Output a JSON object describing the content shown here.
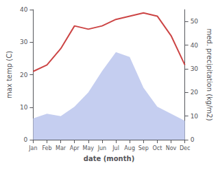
{
  "chart_data": {
    "type": "line",
    "categories": [
      "Jan",
      "Feb",
      "Mar",
      "Apr",
      "May",
      "Jun",
      "Jul",
      "Aug",
      "Sep",
      "Oct",
      "Nov",
      "Dec"
    ],
    "xlabel": "date (month)",
    "ylabel": "max temp (C)",
    "y2label": "med. precipitation (kg/m2)",
    "ylim": [
      0,
      40
    ],
    "yticks": [
      0,
      10,
      20,
      30,
      40
    ],
    "y2lim": [
      0,
      55
    ],
    "y2ticks": [
      0,
      10,
      20,
      30,
      40,
      50
    ],
    "grid": false,
    "series": [
      {
        "type": "area",
        "axis": "y2",
        "color": "#c5cef0",
        "values": [
          9,
          11,
          10,
          14,
          20,
          29,
          37,
          35,
          22,
          14,
          11,
          8
        ]
      },
      {
        "type": "line",
        "color": "#cc4444",
        "values": [
          21,
          23,
          28,
          35,
          34,
          35,
          37,
          38,
          39,
          38,
          32,
          23
        ]
      }
    ]
  }
}
